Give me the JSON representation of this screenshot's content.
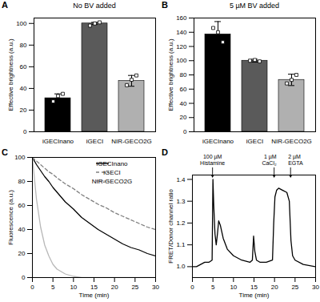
{
  "chart_data": [
    {
      "type": "bar",
      "panel": "A",
      "title": "No BV added",
      "categories": [
        "iGECInano",
        "iGECI",
        "NIR-GECO2G"
      ],
      "values": [
        31,
        100,
        47
      ],
      "errors": [
        4,
        1,
        5
      ],
      "points": [
        [
          28,
          33,
          35
        ],
        [
          98,
          100,
          101
        ],
        [
          43,
          48,
          52
        ]
      ],
      "colors": [
        "#000000",
        "#5a5a5a",
        "#b0b0b0"
      ],
      "ylabel": "Effective brightness (a.u.)",
      "ylim": [
        0,
        105
      ],
      "yticks": [
        0,
        20,
        40,
        60,
        80,
        100
      ]
    },
    {
      "type": "bar",
      "panel": "B",
      "title": "5 µM BV added",
      "categories": [
        "iGECInano",
        "iGECI",
        "NIR-GECO2G"
      ],
      "values": [
        137,
        100,
        73
      ],
      "errors": [
        18,
        2,
        8
      ],
      "points": [
        [
          146,
          140,
          126
        ],
        [
          100,
          101,
          99
        ],
        [
          68,
          73,
          80
        ]
      ],
      "colors": [
        "#000000",
        "#5a5a5a",
        "#b0b0b0"
      ],
      "ylabel": "Effective brightness (a.u.)",
      "ylim": [
        0,
        160
      ],
      "yticks": [
        0,
        20,
        40,
        60,
        80,
        100,
        120,
        140,
        160
      ]
    },
    {
      "type": "line",
      "panel": "C",
      "x": [
        0,
        1,
        2,
        3,
        4,
        5,
        6,
        8,
        10,
        12,
        14,
        16,
        18,
        20,
        22,
        24,
        26,
        28,
        30
      ],
      "series": [
        {
          "name": "iGECInano",
          "color": "#000000",
          "line_style": "solid",
          "values": [
            100,
            94,
            89,
            84,
            80,
            75,
            71,
            63,
            57,
            50,
            45,
            40,
            36,
            32,
            28,
            25,
            23,
            20,
            18
          ]
        },
        {
          "name": "iGECI",
          "color": "#808080",
          "line_style": "dashed",
          "values": [
            100,
            97,
            94,
            91,
            88,
            86,
            83,
            78,
            74,
            69,
            65,
            61,
            58,
            54,
            51,
            48,
            45,
            42,
            40
          ]
        },
        {
          "name": "NIR-GECO2G",
          "color": "#b8b8b8",
          "line_style": "solid",
          "values": [
            100,
            65,
            42,
            27,
            18,
            11,
            7,
            3,
            1,
            0,
            0,
            0,
            0,
            0,
            0,
            0,
            0,
            0,
            0
          ]
        }
      ],
      "xlabel": "Time (min)",
      "ylabel": "Fluorescence (a.u.)",
      "xlim": [
        0,
        30
      ],
      "xticks": [
        0,
        5,
        10,
        15,
        20,
        25,
        30
      ],
      "ylim": [
        0,
        100
      ],
      "yticks": [
        0,
        20,
        40,
        60,
        80,
        100
      ],
      "legend": "top-right"
    },
    {
      "type": "line",
      "panel": "D",
      "x": [
        0,
        1,
        2,
        3,
        4,
        4.8,
        5,
        5.2,
        5.5,
        5.8,
        6.1,
        6.4,
        6.8,
        7.5,
        8.5,
        10,
        12,
        14,
        14.6,
        14.9,
        15.2,
        15.6,
        16.5,
        18,
        19.5,
        19.8,
        20.1,
        20.5,
        21,
        22,
        23,
        23.6,
        24,
        24.4,
        25,
        27,
        30
      ],
      "values": [
        1.0,
        1.0,
        1.01,
        1.02,
        1.02,
        1.03,
        1.4,
        1.28,
        1.15,
        1.1,
        1.15,
        1.21,
        1.19,
        1.13,
        1.08,
        1.05,
        1.03,
        1.02,
        1.03,
        1.14,
        1.07,
        1.03,
        1.02,
        1.02,
        1.03,
        1.2,
        1.32,
        1.35,
        1.36,
        1.35,
        1.34,
        1.3,
        1.12,
        1.05,
        1.03,
        1.01,
        1.0
      ],
      "color": "#000000",
      "xlabel": "Time (min)",
      "ylabel": "FRET/Donor channel ratio",
      "xlim": [
        0,
        30
      ],
      "xticks": [
        0,
        5,
        10,
        15,
        20,
        25,
        30
      ],
      "ylim": [
        0.95,
        1.42
      ],
      "yticks": [
        {
          "value": 1,
          "label": "1.0"
        },
        1.1,
        1.2,
        1.3,
        1.4
      ],
      "annotations": [
        {
          "x": 5,
          "text": [
            "100 µM",
            "Histamine"
          ]
        },
        {
          "x": 20,
          "text": [
            "1 µM",
            "CaCl₂"
          ]
        },
        {
          "x": 24,
          "text": [
            "2 µM",
            "EGTA"
          ]
        }
      ]
    }
  ]
}
